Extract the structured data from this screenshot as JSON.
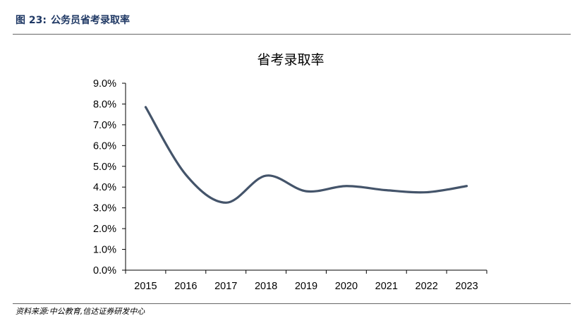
{
  "figure": {
    "number_label": "图 23:",
    "caption": "公务员省考录取率",
    "source": "资料来源:中公教育,信达证券研发中心"
  },
  "colors": {
    "line": "#44546a",
    "axis": "#000000",
    "header": "#1f3864"
  },
  "chart_data": {
    "type": "line",
    "title": "省考录取率",
    "xlabel": "",
    "ylabel": "",
    "categories": [
      "2015",
      "2016",
      "2017",
      "2018",
      "2019",
      "2020",
      "2021",
      "2022",
      "2023"
    ],
    "series": [
      {
        "values": [
          7.85,
          4.6,
          3.25,
          4.55,
          3.8,
          4.05,
          3.85,
          3.75,
          4.05
        ]
      }
    ],
    "y_ticks": [
      "0.0%",
      "1.0%",
      "2.0%",
      "3.0%",
      "4.0%",
      "5.0%",
      "6.0%",
      "7.0%",
      "8.0%",
      "9.0%"
    ],
    "ylim": [
      0,
      9
    ],
    "smooth": true,
    "grid": false,
    "legend": "none"
  }
}
